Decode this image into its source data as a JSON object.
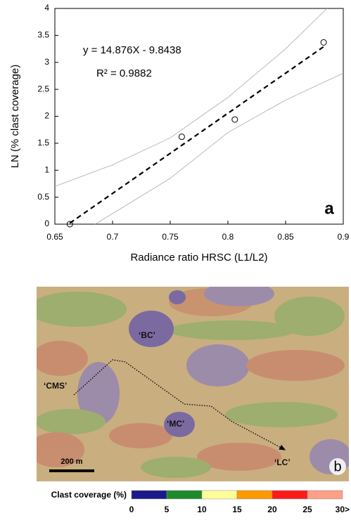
{
  "chart_data": {
    "type": "scatter",
    "xlabel": "Radiance ratio HRSC (L1/L2)",
    "ylabel": "LN (% clast coverage)",
    "xlim": [
      0.65,
      0.9
    ],
    "ylim": [
      0,
      4
    ],
    "xticks": [
      0.65,
      0.7,
      0.75,
      0.8,
      0.85,
      0.9
    ],
    "yticks": [
      0,
      0.5,
      1,
      1.5,
      2,
      2.5,
      3,
      3.5,
      4
    ],
    "annotations": [
      "y = 14.876X - 9.8438",
      "R² = 0.9882"
    ],
    "panel_label": "a",
    "points": {
      "x": [
        0.663,
        0.76,
        0.806,
        0.883
      ],
      "y": [
        0.0,
        1.62,
        1.94,
        3.37
      ],
      "color": "#000000"
    },
    "fit": {
      "x": [
        0.663,
        0.883
      ],
      "y": [
        0.02,
        3.29
      ],
      "color": "#000000"
    },
    "bands": [
      {
        "x": [
          0.65,
          0.7,
          0.75,
          0.8,
          0.85,
          0.886
        ],
        "y": [
          0.7,
          1.1,
          1.6,
          2.35,
          3.25,
          4.0
        ],
        "color": "#aaaaaa"
      },
      {
        "x": [
          0.685,
          0.75,
          0.8,
          0.85,
          0.9
        ],
        "y": [
          0.0,
          0.85,
          1.7,
          2.3,
          2.8
        ],
        "color": "#aaaaaa"
      }
    ]
  },
  "map": {
    "labels": [
      "‘BC’",
      "‘CMS’",
      "‘MC’",
      "‘LC’"
    ],
    "scale_bar": "200 m",
    "panel_label": "b"
  },
  "colorbar": {
    "title": "Clast coverage (%)",
    "ticks": [
      "0",
      "5",
      "10",
      "15",
      "20",
      "25",
      "30>"
    ],
    "colors": [
      "#1a1a8c",
      "#1e8a2a",
      "#ffff99",
      "#ff9900",
      "#ff1a1a",
      "#ff9f86"
    ]
  }
}
